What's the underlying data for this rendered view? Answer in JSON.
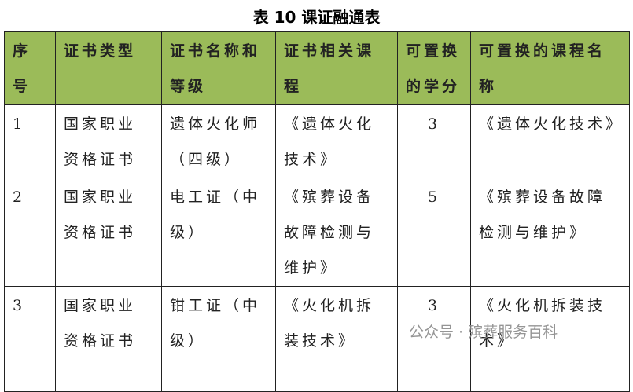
{
  "title": "表 10 课证融通表",
  "table": {
    "header": [
      "序号",
      "证书类型",
      "证书名称和等级",
      "证书相关课程",
      "可置换的学分",
      "可置换的课程名称"
    ],
    "rows": [
      [
        1,
        "国家职业资格证书",
        "遗体火化师（四级）",
        "《遗体火化技术》",
        3,
        "《遗体火化技术》"
      ],
      [
        2,
        "国家职业资格证书",
        "电工证（中级）",
        "《殡葬设备故障检测与维护》",
        5,
        "《殡葬设备故障检测与维护》"
      ],
      [
        3,
        "国家职业资格证书",
        "钳工证（中级）",
        "《火化机拆装技术》",
        3,
        "《火化机拆装技术》"
      ]
    ]
  },
  "watermark": "公众号 · 殡葬服务百科"
}
